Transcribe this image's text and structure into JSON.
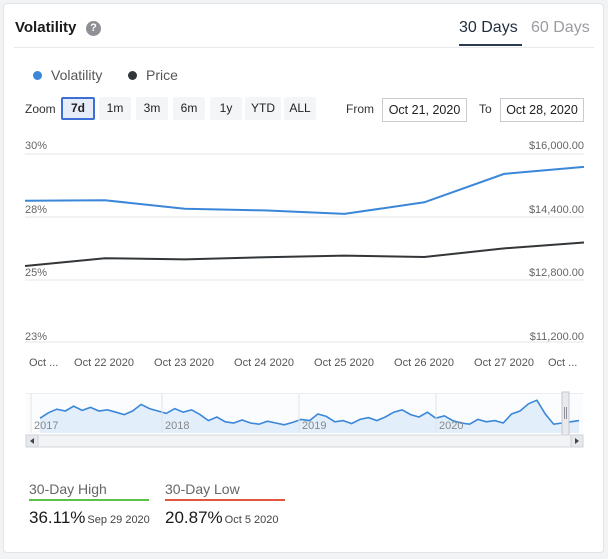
{
  "header": {
    "title": "Volatility",
    "help_icon": "question-circle-icon",
    "tabs": [
      {
        "label": "30 Days",
        "active": true
      },
      {
        "label": "60 Days",
        "active": false
      }
    ]
  },
  "legend": [
    {
      "label": "Volatility",
      "color": "#3a87d9"
    },
    {
      "label": "Price",
      "color": "#333639"
    }
  ],
  "zoom": {
    "label": "Zoom",
    "buttons": [
      "7d",
      "1m",
      "3m",
      "6m",
      "1y",
      "YTD",
      "ALL"
    ],
    "selected": "7d"
  },
  "range": {
    "from_label": "From",
    "from_value": "Oct 21, 2020",
    "to_label": "To",
    "to_value": "Oct 28, 2020"
  },
  "chart_data": {
    "type": "line",
    "x": [
      "Oct 21 2020",
      "Oct 22 2020",
      "Oct 23 2020",
      "Oct 24 2020",
      "Oct 25 2020",
      "Oct 26 2020",
      "Oct 27 2020",
      "Oct 28 2020"
    ],
    "x_tick_labels": [
      "Oct ...",
      "Oct 22 2020",
      "Oct 23 2020",
      "Oct 24 2020",
      "Oct 25 2020",
      "Oct 26 2020",
      "Oct 27 2020",
      "Oct ..."
    ],
    "series": [
      {
        "name": "Volatility",
        "axis": "left",
        "color": "#3a87d9",
        "values": [
          28.26,
          28.28,
          27.96,
          27.9,
          27.77,
          28.2,
          29.26,
          29.52
        ]
      },
      {
        "name": "Price",
        "axis": "right",
        "color": "#333639",
        "values": [
          13140,
          13340,
          13310,
          13365,
          13405,
          13370,
          13590,
          13740
        ]
      }
    ],
    "y_left": {
      "ylim": [
        23,
        30
      ],
      "tick_labels": [
        "30%",
        "28%",
        "25%",
        "23%"
      ]
    },
    "y_right": {
      "ylim": [
        11200,
        16000
      ],
      "tick_labels": [
        "$16,000.00",
        "$14,400.00",
        "$12,800.00",
        "$11,200.00"
      ]
    },
    "grid": true,
    "navigator": {
      "year_labels": [
        "2017",
        "2018",
        "2019",
        "2020"
      ],
      "series": [
        48,
        57,
        63,
        60,
        68,
        61,
        66,
        60,
        62,
        58,
        54,
        60,
        71,
        64,
        60,
        56,
        64,
        58,
        62,
        54,
        44,
        50,
        42,
        40,
        45,
        40,
        38,
        43,
        40,
        37,
        41,
        46,
        44,
        55,
        51,
        42,
        44,
        39,
        46,
        49,
        44,
        50,
        58,
        62,
        54,
        50,
        58,
        48,
        52,
        44,
        40,
        38,
        46,
        42,
        44,
        40,
        55,
        60,
        72,
        78,
        55,
        38,
        40,
        42,
        44
      ]
    }
  },
  "stats": [
    {
      "label": "30-Day High",
      "value": "36.11%",
      "date": "Sep 29 2020",
      "color": "#5cc24a"
    },
    {
      "label": "30-Day Low",
      "value": "20.87%",
      "date": "Oct 5 2020",
      "color": "#e0563f"
    }
  ]
}
